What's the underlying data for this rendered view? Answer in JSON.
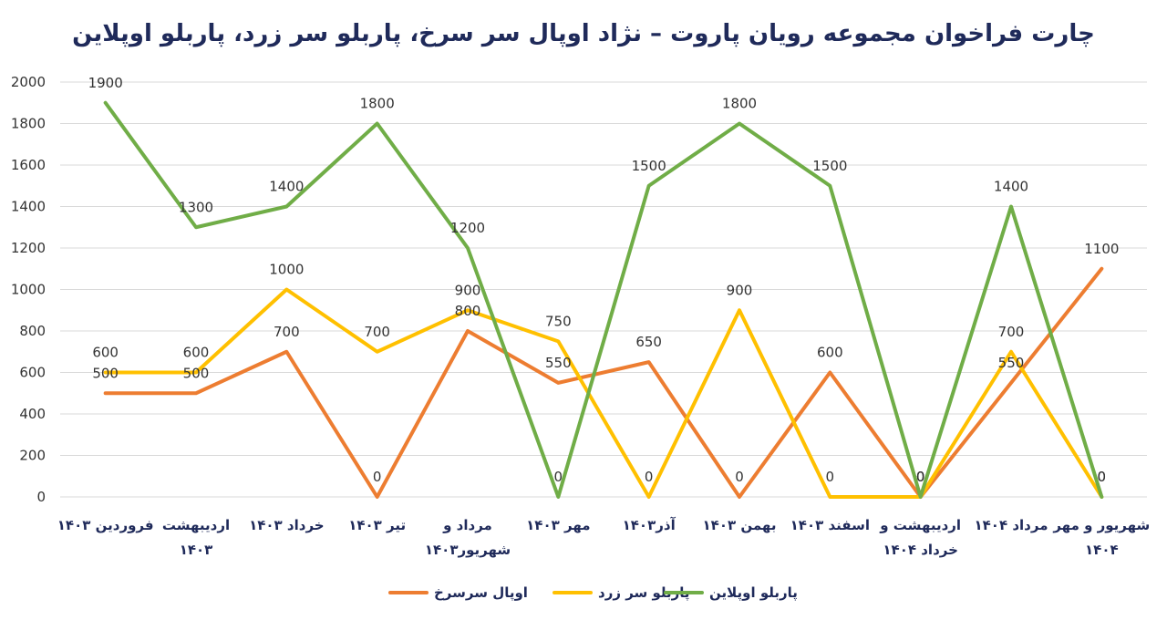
{
  "chart_data": {
    "type": "line",
    "title": "چارت فراخوان مجموعه رویان پاروت – نژاد اوپال سر سرخ، پاربلو سر زرد، پاربلو اوپلاین",
    "xlabel": "",
    "ylabel": "",
    "ylim": [
      0,
      2000
    ],
    "yticks": [
      0,
      200,
      400,
      600,
      800,
      1000,
      1200,
      1400,
      1600,
      1800,
      2000
    ],
    "grid": true,
    "legend_position": "bottom",
    "categories": [
      [
        "فروردین ۱۴۰۳"
      ],
      [
        "اردیبهشت",
        "۱۴۰۳"
      ],
      [
        "خرداد ۱۴۰۳"
      ],
      [
        "تیر ۱۴۰۳"
      ],
      [
        "مرداد و",
        "شهریور۱۴۰۳"
      ],
      [
        "مهر ۱۴۰۳"
      ],
      [
        "آذر۱۴۰۳"
      ],
      [
        "بهمن ۱۴۰۳"
      ],
      [
        "اسفند ۱۴۰۳"
      ],
      [
        "اردیبهشت و",
        "خرداد ۱۴۰۴"
      ],
      [
        "مرداد ۱۴۰۴"
      ],
      [
        "شهریور و مهر",
        "۱۴۰۴"
      ]
    ],
    "series": [
      {
        "name": "اوپال سرسرخ",
        "color": "#ed7d31",
        "values": [
          500,
          500,
          700,
          0,
          800,
          550,
          650,
          0,
          600,
          0,
          550,
          1100
        ]
      },
      {
        "name": "پاربلو سر زرد",
        "color": "#ffc000",
        "values": [
          600,
          600,
          1000,
          700,
          900,
          750,
          0,
          900,
          0,
          0,
          700,
          0
        ]
      },
      {
        "name": "پاربلو اوپلاین",
        "color": "#70ad47",
        "values": [
          1900,
          1300,
          1400,
          1800,
          1200,
          0,
          1500,
          1800,
          1500,
          0,
          1400,
          0
        ]
      }
    ]
  }
}
